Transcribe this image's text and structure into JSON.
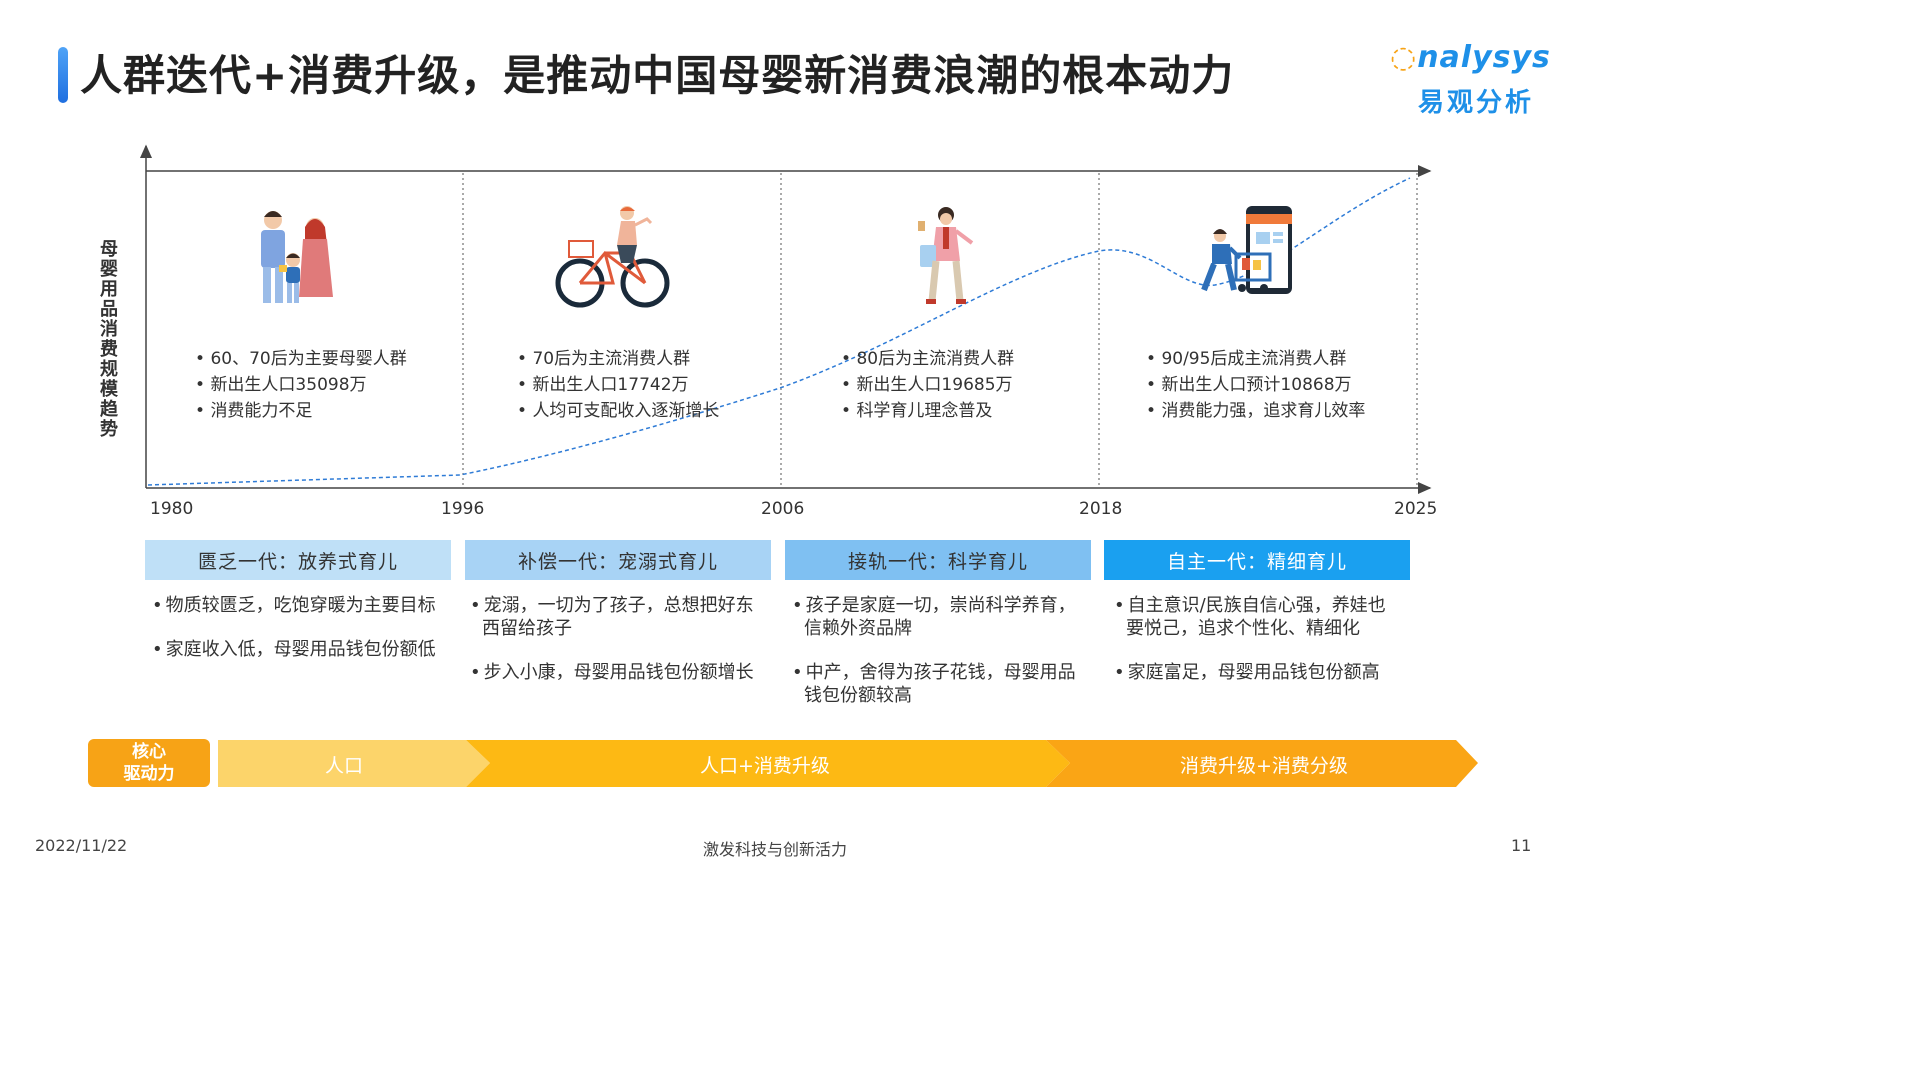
{
  "title": "人群迭代+消费升级，是推动中国母婴新消费浪潮的根本动力",
  "logo": {
    "en_rest": "nalysys",
    "cn": "易观分析"
  },
  "y_axis_label": "母婴用品消费规模趋势",
  "years": [
    "1980",
    "1996",
    "2006",
    "2018",
    "2025"
  ],
  "eras": [
    {
      "bullets": [
        "60、70后为主要母婴人群",
        "新出生人口35098万",
        "消费能力不足"
      ]
    },
    {
      "bullets": [
        "70后为主流消费人群",
        "新出生人口17742万",
        "人均可支配收入逐渐增长"
      ]
    },
    {
      "bullets": [
        "80后为主流消费人群",
        "新出生人口19685万",
        "科学育儿理念普及"
      ]
    },
    {
      "bullets": [
        "90/95后成主流消费人群",
        "新出生人口预计10868万",
        "消费能力强，追求育儿效率"
      ]
    }
  ],
  "generations": [
    {
      "label": "匮乏一代：放养式育儿",
      "color": "#bfe0f7",
      "points": [
        "物质较匮乏，吃饱穿暖为主要目标",
        "家庭收入低，母婴用品钱包份额低"
      ]
    },
    {
      "label": "补偿一代：宠溺式育儿",
      "color": "#a8d3f5",
      "points": [
        "宠溺，一切为了孩子，总想把好东西留给孩子",
        "步入小康，母婴用品钱包份额增长"
      ]
    },
    {
      "label": "接轨一代：科学育儿",
      "color": "#7fc0f2",
      "points": [
        "孩子是家庭一切，崇尚科学养育，信赖外资品牌",
        "中产，舍得为孩子花钱，母婴用品钱包份额较高"
      ]
    },
    {
      "label": "自主一代：精细育儿",
      "color": "#1aa0f0",
      "points": [
        "自主意识/民族自信心强，养娃也要悦己，追求个性化、精细化",
        "家庭富足，母婴用品钱包份额高"
      ]
    }
  ],
  "drivers": {
    "label": "核心驱动力",
    "stages": [
      "人口",
      "人口+消费升级",
      "消费升级+消费分级"
    ]
  },
  "footer": {
    "date": "2022/11/22",
    "slogan": "激发科技与创新活力",
    "page": "11"
  }
}
